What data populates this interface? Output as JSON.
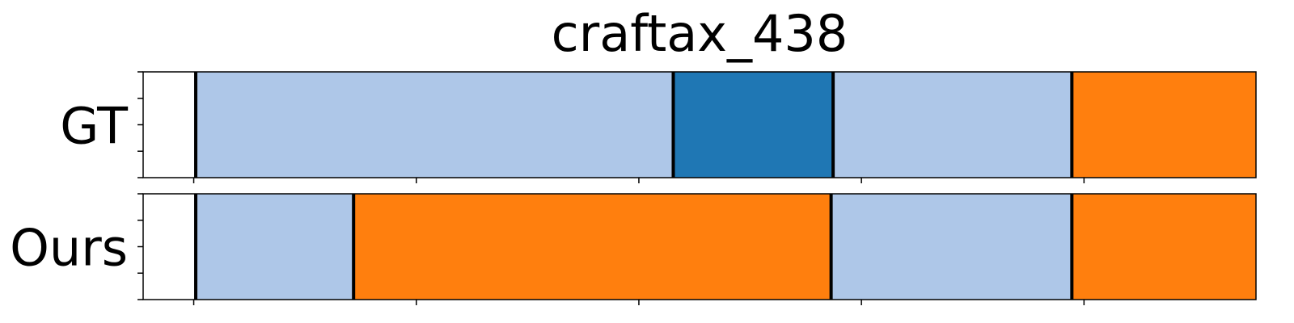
{
  "chart_data": {
    "type": "bar",
    "title": "craftax_438",
    "xlim": [
      0,
      55
    ],
    "x_ticks": [
      2.5,
      13.5,
      24.5,
      35.5,
      46.5
    ],
    "x_tick_labels": [
      "",
      "",
      "",
      "",
      ""
    ],
    "y_ticks_per_row": 5,
    "colors": {
      "light_blue": "#aec7e8",
      "blue": "#1f77b4",
      "orange": "#ff7f0e",
      "boundary": "#000000"
    },
    "rows": [
      {
        "label": "GT",
        "segments": [
          {
            "start": 2.6,
            "end": 26.2,
            "color": "#aec7e8"
          },
          {
            "start": 26.2,
            "end": 34.1,
            "color": "#1f77b4"
          },
          {
            "start": 34.1,
            "end": 45.9,
            "color": "#aec7e8"
          },
          {
            "start": 45.9,
            "end": 57.7,
            "color": "#ff7f0e"
          }
        ],
        "boundaries": [
          2.6,
          26.2,
          34.1,
          45.9,
          57.7
        ]
      },
      {
        "label": "Ours",
        "segments": [
          {
            "start": 2.6,
            "end": 10.4,
            "color": "#aec7e8"
          },
          {
            "start": 10.4,
            "end": 34.0,
            "color": "#ff7f0e"
          },
          {
            "start": 34.0,
            "end": 45.9,
            "color": "#aec7e8"
          },
          {
            "start": 45.9,
            "end": 57.7,
            "color": "#ff7f0e"
          }
        ],
        "boundaries": [
          2.6,
          10.4,
          34.0,
          45.9,
          57.7
        ]
      }
    ]
  }
}
